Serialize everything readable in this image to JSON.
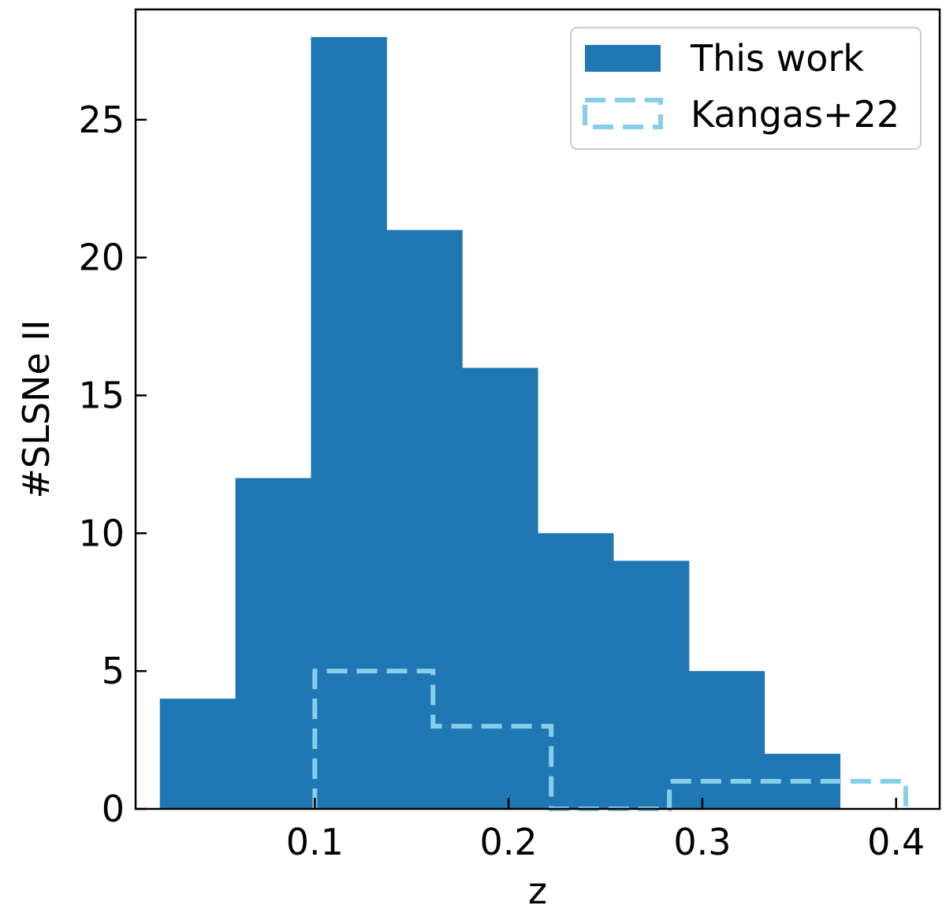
{
  "chart_data": {
    "type": "bar",
    "xlabel": "z",
    "ylabel": "#SLSNe II",
    "xlim": [
      0.0075,
      0.4225
    ],
    "ylim": [
      0,
      29
    ],
    "xticks": [
      0.1,
      0.2,
      0.3,
      0.4
    ],
    "xtick_labels": [
      "0.1",
      "0.2",
      "0.3",
      "0.4"
    ],
    "yticks": [
      0,
      5,
      10,
      15,
      20,
      25
    ],
    "ytick_labels": [
      "0",
      "5",
      "10",
      "15",
      "20",
      "25"
    ],
    "grid": false,
    "legend_position": "top-right",
    "series": [
      {
        "name": "This work",
        "style": "filled",
        "color": "#1f77b4",
        "bin_edges": [
          0.02,
          0.059,
          0.098,
          0.137,
          0.176,
          0.215,
          0.254,
          0.293,
          0.332,
          0.371
        ],
        "counts": [
          4,
          12,
          28,
          21,
          16,
          10,
          9,
          5,
          2
        ]
      },
      {
        "name": "Kangas+22",
        "style": "dashed-step",
        "color": "#87ceeb",
        "bin_edges": [
          0.1,
          0.161,
          0.222,
          0.283,
          0.344,
          0.405
        ],
        "counts": [
          5,
          3,
          0,
          1,
          1
        ]
      }
    ]
  }
}
